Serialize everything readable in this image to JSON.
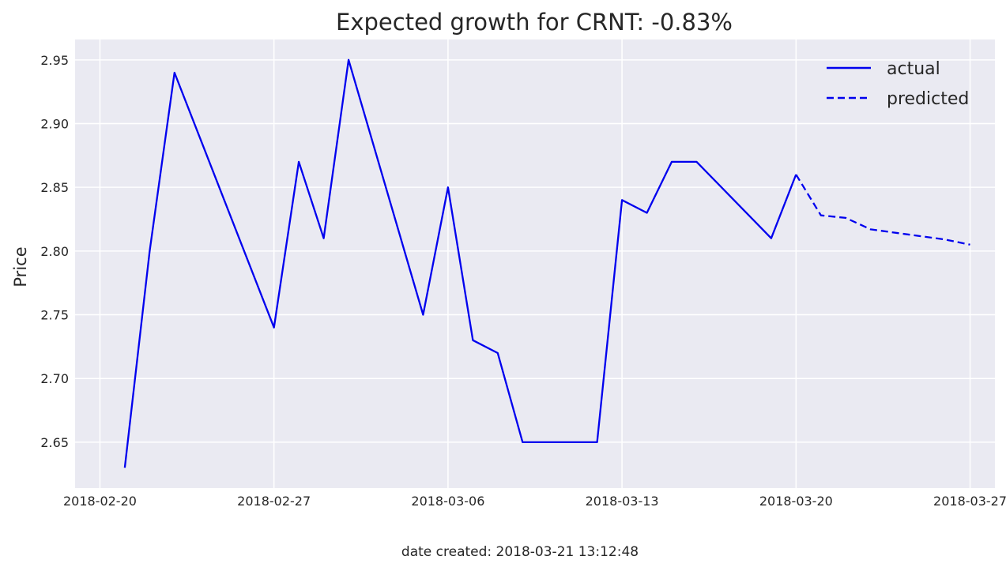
{
  "chart_data": {
    "type": "line",
    "title": "Expected growth for CRNT: -0.83%",
    "xlabel": "",
    "ylabel": "Price",
    "footer": "date created: 2018-03-21 13:12:48",
    "xlim": [
      "2018-02-19",
      "2018-03-28"
    ],
    "ylim": [
      2.614,
      2.966
    ],
    "grid": true,
    "legend_position": "top-right",
    "x_ticks": [
      "2018-02-20",
      "2018-02-27",
      "2018-03-06",
      "2018-03-13",
      "2018-03-20",
      "2018-03-27"
    ],
    "y_ticks": [
      2.65,
      2.7,
      2.75,
      2.8,
      2.85,
      2.9,
      2.95
    ],
    "series": [
      {
        "name": "actual",
        "style": "solid",
        "color": "#0000ee",
        "x": [
          "2018-02-21",
          "2018-02-22",
          "2018-02-23",
          "2018-02-27",
          "2018-02-28",
          "2018-03-01",
          "2018-03-02",
          "2018-03-05",
          "2018-03-06",
          "2018-03-07",
          "2018-03-08",
          "2018-03-09",
          "2018-03-12",
          "2018-03-13",
          "2018-03-14",
          "2018-03-15",
          "2018-03-16",
          "2018-03-19",
          "2018-03-20"
        ],
        "y": [
          2.63,
          2.8,
          2.94,
          2.74,
          2.87,
          2.81,
          2.95,
          2.75,
          2.85,
          2.73,
          2.72,
          2.65,
          2.65,
          2.84,
          2.83,
          2.87,
          2.87,
          2.81,
          2.86
        ]
      },
      {
        "name": "predicted",
        "style": "dashed",
        "color": "#0000ee",
        "x": [
          "2018-03-20",
          "2018-03-21",
          "2018-03-22",
          "2018-03-23",
          "2018-03-26",
          "2018-03-27"
        ],
        "y": [
          2.86,
          2.828,
          2.826,
          2.817,
          2.809,
          2.805
        ]
      }
    ]
  }
}
